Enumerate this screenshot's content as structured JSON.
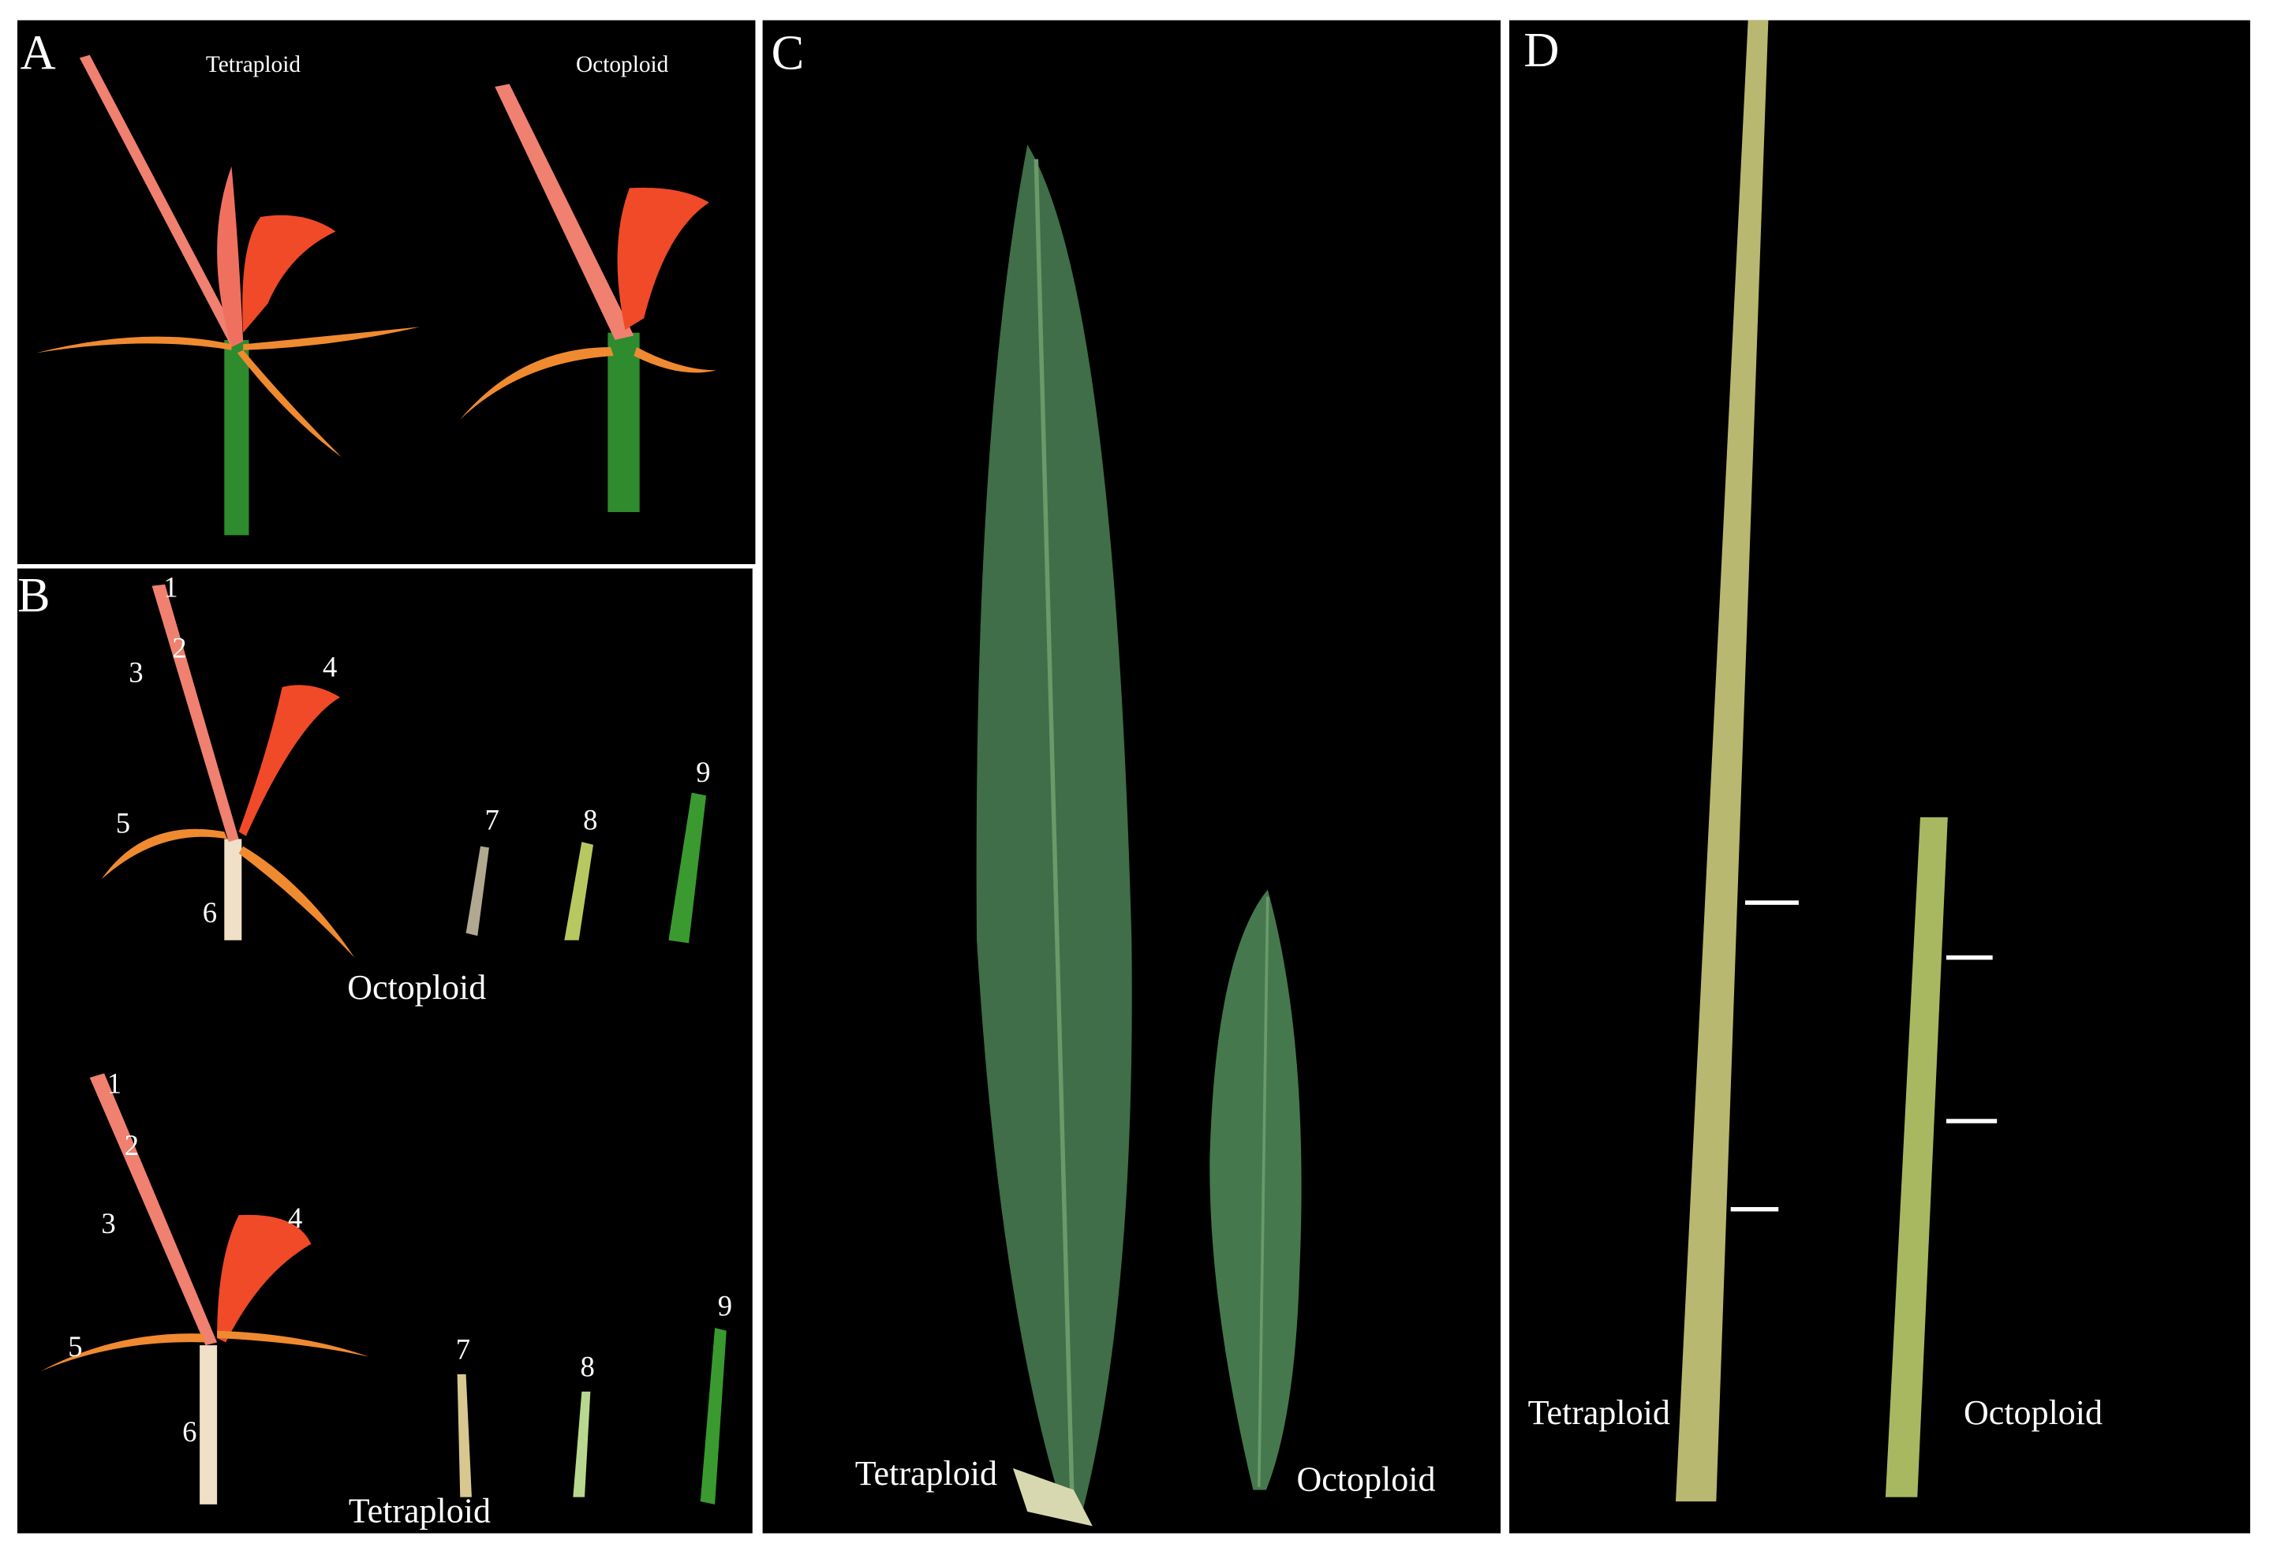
{
  "panels": [
    {
      "label": "A",
      "texts": [
        "Tetraploid",
        "Octoploid"
      ]
    },
    {
      "label": "B",
      "texts": [
        "Octoploid",
        "Tetraploid"
      ],
      "octoploid_numbers": [
        "1",
        "2",
        "3",
        "4",
        "5",
        "6",
        "7",
        "8",
        "9"
      ],
      "tetraploid_numbers": [
        "1",
        "2",
        "3",
        "4",
        "5",
        "6",
        "7",
        "8",
        "9"
      ]
    },
    {
      "label": "C",
      "texts": [
        "Tetraploid",
        "Octoploid"
      ]
    },
    {
      "label": "D",
      "texts": [
        "Tetraploid",
        "Octoploid"
      ]
    }
  ]
}
